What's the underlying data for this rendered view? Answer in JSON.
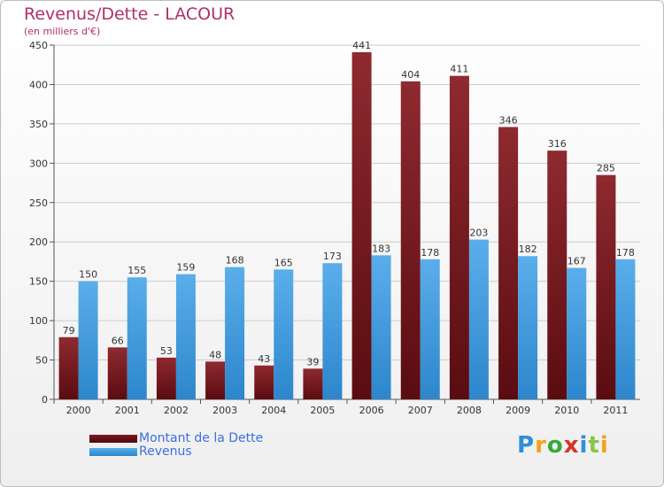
{
  "header": {
    "title": "Revenus/Dette - LACOUR",
    "subtitle": "(en milliers d'€)"
  },
  "logo": {
    "text": "Proxiti"
  },
  "colors": {
    "debt": "#7b1a1f",
    "revenue": "#3d9be0",
    "grid": "#cccccc",
    "title": "#b0306a",
    "legend_text": "#3c6fe0"
  },
  "chart_data": {
    "type": "bar",
    "title": "Revenus/Dette - LACOUR",
    "ylabel": "",
    "xlabel": "",
    "ylim": [
      0,
      450
    ],
    "yticks": [
      0,
      50,
      100,
      150,
      200,
      250,
      300,
      350,
      400,
      450
    ],
    "grid": true,
    "legend_placement": "bottom-left",
    "categories": [
      "2000",
      "2001",
      "2002",
      "2003",
      "2004",
      "2005",
      "2006",
      "2007",
      "2008",
      "2009",
      "2010",
      "2011"
    ],
    "series": [
      {
        "name": "Montant de la Dette",
        "color": "#7b1a1f",
        "values": [
          79,
          66,
          53,
          48,
          43,
          39,
          441,
          404,
          411,
          346,
          316,
          285
        ]
      },
      {
        "name": "Revenus",
        "color": "#3d9be0",
        "values": [
          150,
          155,
          159,
          168,
          165,
          173,
          183,
          178,
          203,
          182,
          167,
          178
        ]
      }
    ]
  }
}
